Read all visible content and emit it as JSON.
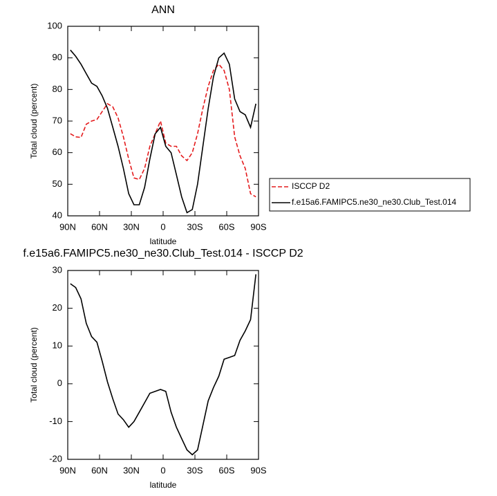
{
  "chart_data": [
    {
      "type": "line",
      "title": "ANN",
      "xlabel": "latitude",
      "ylabel": "Total cloud (percent)",
      "x": [
        87.5,
        82.5,
        77.5,
        72.5,
        67.5,
        62.5,
        57.5,
        52.5,
        47.5,
        42.5,
        37.5,
        32.5,
        27.5,
        22.5,
        17.5,
        12.5,
        7.5,
        2.5,
        -2.5,
        -7.5,
        -12.5,
        -17.5,
        -22.5,
        -27.5,
        -32.5,
        -37.5,
        -42.5,
        -47.5,
        -52.5,
        -57.5,
        -62.5,
        -67.5,
        -72.5,
        -77.5,
        -82.5,
        -87.5
      ],
      "series": [
        {
          "name": "ISCCP D2",
          "color": "#e41a1c",
          "dashed": true,
          "values": [
            66,
            65,
            64.8,
            69,
            70,
            70.5,
            73,
            75.5,
            74.5,
            71,
            65,
            58,
            52,
            51.5,
            55,
            62,
            66,
            70,
            63,
            62,
            62,
            59,
            57.5,
            60,
            66,
            74,
            81,
            86,
            88,
            86,
            80,
            65,
            59,
            55,
            47,
            46
          ]
        },
        {
          "name": "f.e15a6.FAMIPC5.ne30_ne30.Club_Test.014",
          "color": "#000000",
          "dashed": false,
          "values": [
            92.5,
            90.5,
            88,
            85,
            82,
            81,
            78,
            74,
            68,
            62,
            55,
            47,
            43.5,
            43.5,
            49,
            58,
            66,
            68,
            62,
            60,
            53,
            46,
            41,
            42,
            50,
            62,
            74,
            84,
            90,
            91.5,
            88,
            77,
            73,
            72,
            68,
            75.5
          ]
        }
      ],
      "xlim": [
        90,
        -90
      ],
      "ylim": [
        40,
        100
      ],
      "xticks": [
        {
          "value": 90,
          "label": "90N"
        },
        {
          "value": 60,
          "label": "60N"
        },
        {
          "value": 30,
          "label": "30N"
        },
        0,
        {
          "value": -30,
          "label": "30S"
        },
        {
          "value": -60,
          "label": "60S"
        },
        {
          "value": -90,
          "label": "90S"
        }
      ],
      "yticks": [
        40,
        50,
        60,
        70,
        80,
        90,
        100
      ]
    },
    {
      "type": "line",
      "title": "f.e15a6.FAMIPC5.ne30_ne30.Club_Test.014 - ISCCP D2",
      "xlabel": "latitude",
      "ylabel": "Total cloud (percent)",
      "x": [
        87.5,
        82.5,
        77.5,
        72.5,
        67.5,
        62.5,
        57.5,
        52.5,
        47.5,
        42.5,
        37.5,
        32.5,
        27.5,
        22.5,
        17.5,
        12.5,
        7.5,
        2.5,
        -2.5,
        -7.5,
        -12.5,
        -17.5,
        -22.5,
        -27.5,
        -32.5,
        -37.5,
        -42.5,
        -47.5,
        -52.5,
        -57.5,
        -62.5,
        -67.5,
        -72.5,
        -77.5,
        -82.5,
        -87.5
      ],
      "series": [
        {
          "color": "#000000",
          "dashed": false,
          "values": [
            26.5,
            25.5,
            22.5,
            16,
            12.5,
            11,
            6,
            0.5,
            -4,
            -8,
            -9.5,
            -11.5,
            -10,
            -7.5,
            -5,
            -2.5,
            -2,
            -1.5,
            -2,
            -7.5,
            -11.5,
            -14.5,
            -17.5,
            -18.8,
            -17.5,
            -11,
            -4.5,
            -1,
            2,
            6.5,
            7,
            7.5,
            11.5,
            14,
            17,
            29
          ]
        }
      ],
      "xlim": [
        90,
        -90
      ],
      "ylim": [
        -20,
        30
      ],
      "xticks": [
        {
          "value": 90,
          "label": "90N"
        },
        {
          "value": 60,
          "label": "60N"
        },
        {
          "value": 30,
          "label": "30N"
        },
        0,
        {
          "value": -30,
          "label": "30S"
        },
        {
          "value": -60,
          "label": "60S"
        },
        {
          "value": -90,
          "label": "90S"
        }
      ],
      "yticks": [
        -20,
        -10,
        0,
        10,
        20,
        30
      ]
    }
  ]
}
